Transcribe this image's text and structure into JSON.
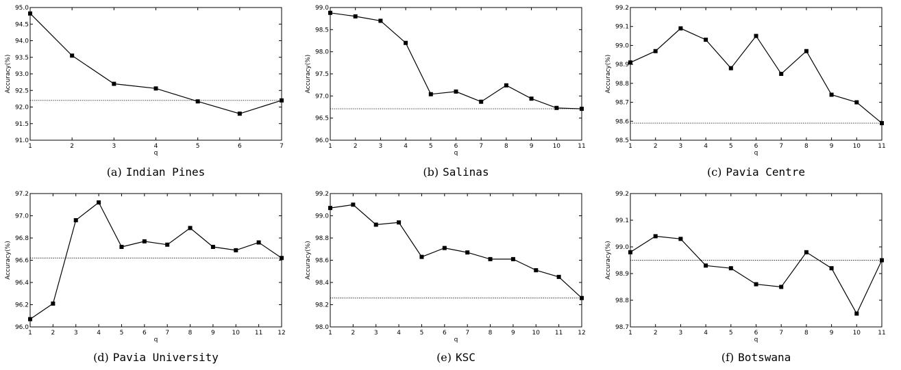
{
  "chart_data": [
    {
      "type": "line",
      "caption_letter": "(a)",
      "caption_name": "Indian Pines",
      "xlabel": "q",
      "ylabel": "Accuracy(%)",
      "x": [
        1,
        2,
        3,
        4,
        5,
        6,
        7
      ],
      "xticks": [
        "1",
        "2",
        "3",
        "4",
        "5",
        "6",
        "7"
      ],
      "xlim": [
        1,
        7
      ],
      "ylim": [
        91.0,
        95.0
      ],
      "yticks": [
        "91.0",
        "91.5",
        "92.0",
        "92.5",
        "93.0",
        "93.5",
        "94.0",
        "94.5",
        "95.0"
      ],
      "ytick_values": [
        91.0,
        91.5,
        92.0,
        92.5,
        93.0,
        93.5,
        94.0,
        94.5,
        95.0
      ],
      "values": [
        94.82,
        93.55,
        92.7,
        92.56,
        92.17,
        91.8,
        92.2
      ],
      "reference_line": 92.2
    },
    {
      "type": "line",
      "caption_letter": "(b)",
      "caption_name": "Salinas",
      "xlabel": "q",
      "ylabel": "Accuracy(%)",
      "x": [
        1,
        2,
        3,
        4,
        5,
        6,
        7,
        8,
        9,
        10,
        11
      ],
      "xticks": [
        "1",
        "2",
        "3",
        "4",
        "5",
        "6",
        "7",
        "8",
        "9",
        "10",
        "11"
      ],
      "xlim": [
        1,
        11
      ],
      "ylim": [
        96.0,
        99.0
      ],
      "yticks": [
        "96.0",
        "96.5",
        "97.0",
        "97.5",
        "98.0",
        "98.5",
        "99.0"
      ],
      "ytick_values": [
        96.0,
        96.5,
        97.0,
        97.5,
        98.0,
        98.5,
        99.0
      ],
      "values": [
        98.88,
        98.8,
        98.7,
        98.2,
        97.04,
        97.1,
        96.87,
        97.24,
        96.94,
        96.73,
        96.71
      ],
      "reference_line": 96.71
    },
    {
      "type": "line",
      "caption_letter": "(c)",
      "caption_name": "Pavia Centre",
      "xlabel": "q",
      "ylabel": "Accuracy(%)",
      "x": [
        1,
        2,
        3,
        4,
        5,
        6,
        7,
        8,
        9,
        10,
        11
      ],
      "xticks": [
        "1",
        "2",
        "3",
        "4",
        "5",
        "6",
        "7",
        "8",
        "9",
        "10",
        "11"
      ],
      "xlim": [
        1,
        11
      ],
      "ylim": [
        98.5,
        99.2
      ],
      "yticks": [
        "98.5",
        "98.6",
        "98.7",
        "98.8",
        "98.9",
        "99.0",
        "99.1",
        "99.2"
      ],
      "ytick_values": [
        98.5,
        98.6,
        98.7,
        98.8,
        98.9,
        99.0,
        99.1,
        99.2
      ],
      "values": [
        98.91,
        98.97,
        99.09,
        99.03,
        98.88,
        99.05,
        98.85,
        98.97,
        98.74,
        98.7,
        98.59
      ],
      "reference_line": 98.59
    },
    {
      "type": "line",
      "caption_letter": "(d)",
      "caption_name": "Pavia University",
      "xlabel": "q",
      "ylabel": "Accuracy(%)",
      "x": [
        1,
        2,
        3,
        4,
        5,
        6,
        7,
        8,
        9,
        10,
        11,
        12
      ],
      "xticks": [
        "1",
        "2",
        "3",
        "4",
        "5",
        "6",
        "7",
        "8",
        "9",
        "10",
        "11",
        "12"
      ],
      "xlim": [
        1,
        12
      ],
      "ylim": [
        96.0,
        97.2
      ],
      "yticks": [
        "96.0",
        "96.2",
        "96.4",
        "96.6",
        "96.8",
        "97.0",
        "97.2"
      ],
      "ytick_values": [
        96.0,
        96.2,
        96.4,
        96.6,
        96.8,
        97.0,
        97.2
      ],
      "values": [
        96.07,
        96.21,
        96.96,
        97.12,
        96.72,
        96.77,
        96.74,
        96.89,
        96.72,
        96.69,
        96.76,
        96.62
      ],
      "reference_line": 96.62
    },
    {
      "type": "line",
      "caption_letter": "(e)",
      "caption_name": "KSC",
      "xlabel": "q",
      "ylabel": "Accuracy(%)",
      "x": [
        1,
        2,
        3,
        4,
        5,
        6,
        7,
        8,
        9,
        10,
        11,
        12
      ],
      "xticks": [
        "1",
        "2",
        "3",
        "4",
        "5",
        "6",
        "7",
        "8",
        "9",
        "10",
        "11",
        "12"
      ],
      "xlim": [
        1,
        12
      ],
      "ylim": [
        98.0,
        99.2
      ],
      "yticks": [
        "98.0",
        "98.2",
        "98.4",
        "98.6",
        "98.8",
        "99.0",
        "99.2"
      ],
      "ytick_values": [
        98.0,
        98.2,
        98.4,
        98.6,
        98.8,
        99.0,
        99.2
      ],
      "values": [
        99.07,
        99.1,
        98.92,
        98.94,
        98.63,
        98.71,
        98.67,
        98.61,
        98.61,
        98.51,
        98.45,
        98.26
      ],
      "reference_line": 98.26
    },
    {
      "type": "line",
      "caption_letter": "(f)",
      "caption_name": "Botswana",
      "xlabel": "q",
      "ylabel": "Accuracy(%)",
      "x": [
        1,
        2,
        3,
        4,
        5,
        6,
        7,
        8,
        9,
        10,
        11
      ],
      "xticks": [
        "1",
        "2",
        "3",
        "4",
        "5",
        "6",
        "7",
        "8",
        "9",
        "10",
        "11"
      ],
      "xlim": [
        1,
        11
      ],
      "ylim": [
        98.7,
        99.2
      ],
      "yticks": [
        "98.7",
        "98.8",
        "98.9",
        "99.0",
        "99.1",
        "99.2"
      ],
      "ytick_values": [
        98.7,
        98.8,
        98.9,
        99.0,
        99.1,
        99.2
      ],
      "values": [
        98.98,
        99.04,
        99.03,
        98.93,
        98.92,
        98.86,
        98.85,
        98.98,
        98.92,
        98.75,
        98.95
      ],
      "reference_line": 98.95
    }
  ]
}
